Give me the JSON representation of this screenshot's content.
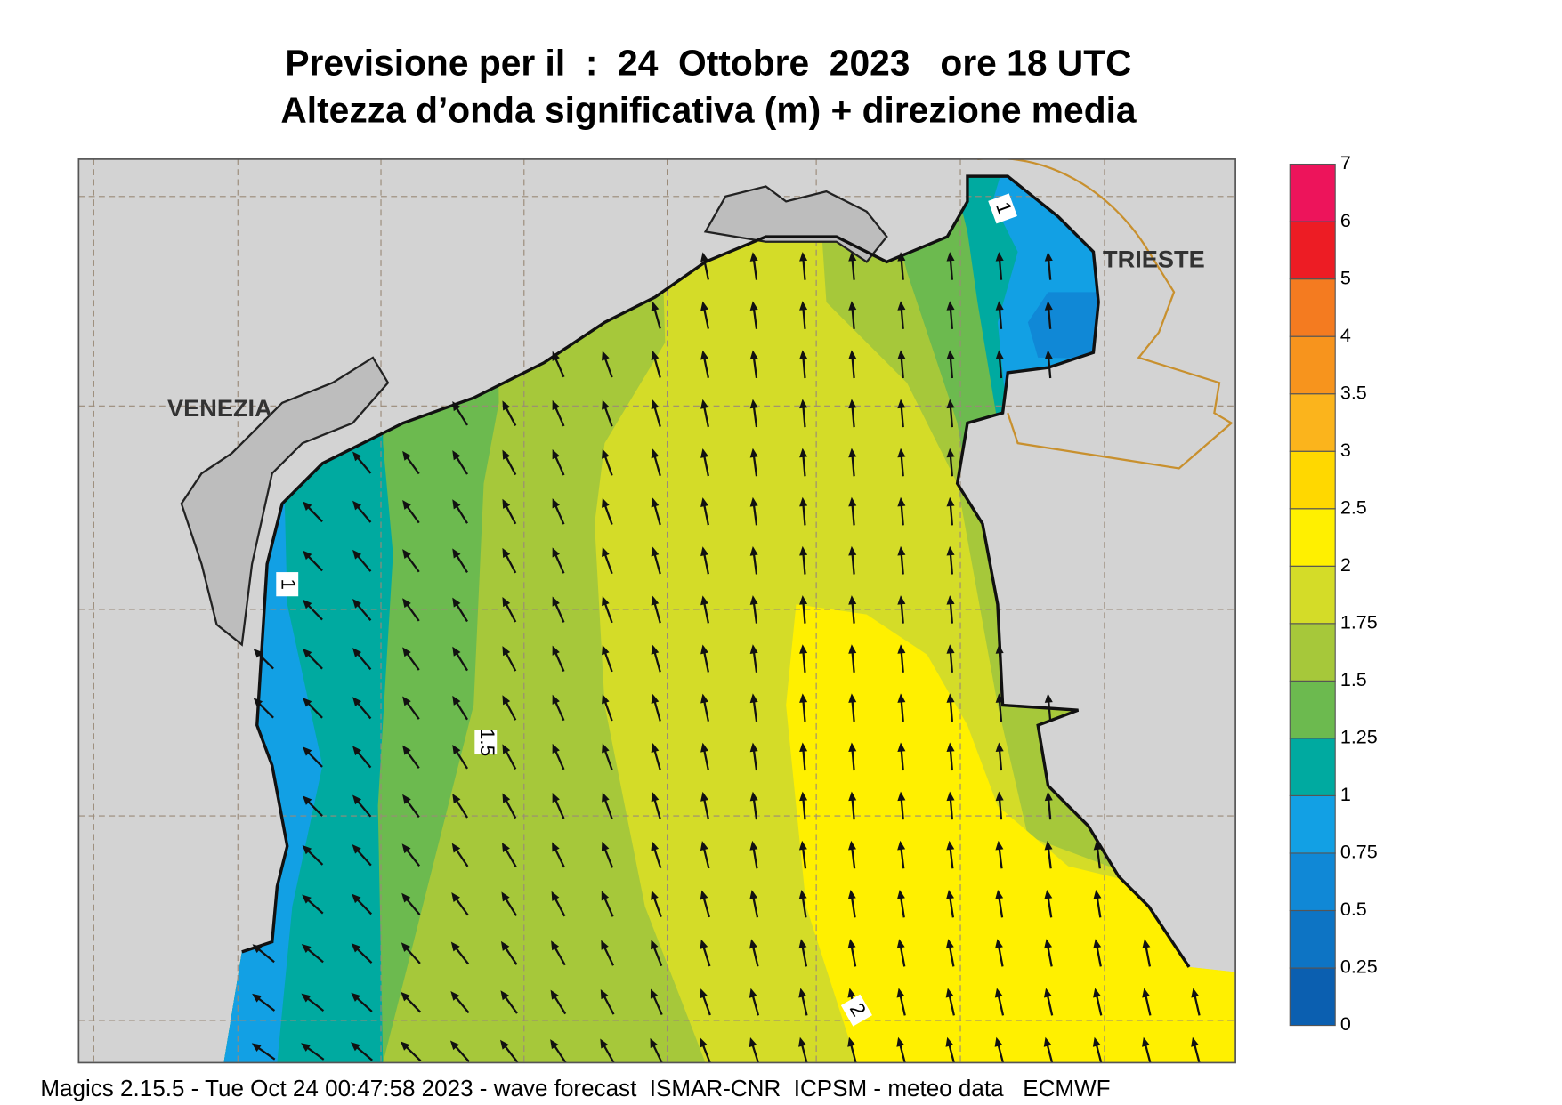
{
  "header": {
    "title": "Previsione per il  :  24  Ottobre  2023   ore 18 UTC",
    "subtitle": "Altezza d’onda significativa (m) + direzione media"
  },
  "map": {
    "places": [
      "VENEZIA",
      "TRIESTE"
    ],
    "contour_labels": [
      "1",
      "1",
      "1.5",
      "2"
    ]
  },
  "legend": {
    "levels": [
      0,
      0.25,
      0.5,
      0.75,
      1,
      1.25,
      1.5,
      1.75,
      2,
      2.5,
      3,
      3.5,
      4,
      5,
      6,
      7
    ],
    "colors": [
      "#0b5fb0",
      "#0d74c4",
      "#1088d6",
      "#12a0e4",
      "#00aaa0",
      "#6cba4f",
      "#a6c83a",
      "#d4dc28",
      "#fff000",
      "#ffd800",
      "#fbb41c",
      "#f7941d",
      "#f47b20",
      "#ed1c24",
      "#ed145b"
    ]
  },
  "footer": "Magics 2.15.5 - Tue Oct 24 00:47:58 2023 - wave forecast  ISMAR-CNR  ICPSM - meteo data   ECMWF"
}
